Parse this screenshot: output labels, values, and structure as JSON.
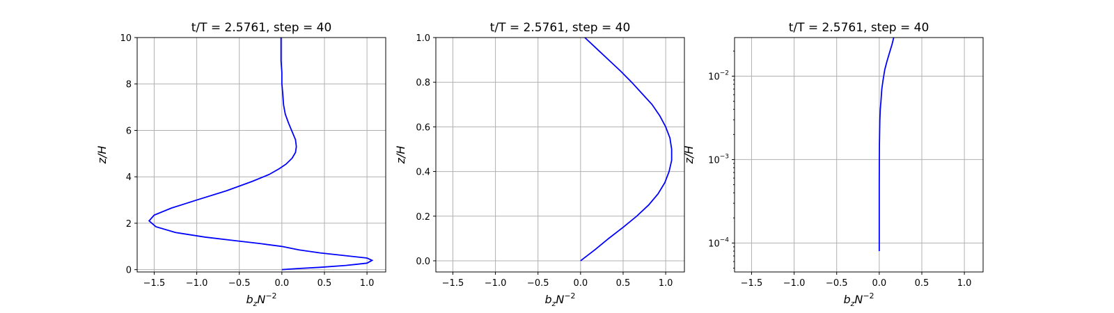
{
  "figure": {
    "curve_color": "#0000ff"
  },
  "chart_data": [
    {
      "type": "line",
      "title": "t/T = 2.5761, step = 40",
      "xlabel_main": "b",
      "xlabel_sub": "z",
      "xlabel_main2": "N",
      "xlabel_sup": "−2",
      "ylabel": "z/H",
      "xlim": [
        -1.7,
        1.22
      ],
      "ylim": [
        -0.1,
        10
      ],
      "yscale": "linear",
      "grid": true,
      "x_ticks": [
        -1.5,
        -1.0,
        -0.5,
        0.0,
        0.5,
        1.0
      ],
      "x_tick_labels": [
        "−1.5",
        "−1.0",
        "−0.5",
        "0.0",
        "0.5",
        "1.0"
      ],
      "y_ticks": [
        0,
        2,
        4,
        6,
        8,
        10
      ],
      "y_tick_labels": [
        "0",
        "2",
        "4",
        "6",
        "8",
        "10"
      ],
      "series": [
        {
          "x": [
            0.0,
            0.2,
            0.45,
            0.75,
            1.0,
            1.06,
            1.0,
            0.75,
            0.45,
            0.2,
            0.0,
            -0.25,
            -0.55,
            -0.9,
            -1.25,
            -1.48,
            -1.56,
            -1.5,
            -1.3,
            -1.0,
            -0.65,
            -0.35,
            -0.15,
            -0.03,
            0.05,
            0.12,
            0.16,
            0.17,
            0.16,
            0.12,
            0.08,
            0.04,
            0.02,
            0.01,
            0.0,
            0.0,
            -0.01,
            -0.01,
            -0.01
          ],
          "y": [
            0.0,
            0.05,
            0.1,
            0.18,
            0.28,
            0.4,
            0.5,
            0.6,
            0.72,
            0.85,
            1.0,
            1.12,
            1.25,
            1.4,
            1.6,
            1.85,
            2.1,
            2.35,
            2.65,
            3.0,
            3.4,
            3.8,
            4.1,
            4.35,
            4.55,
            4.8,
            5.05,
            5.3,
            5.6,
            5.95,
            6.3,
            6.7,
            7.1,
            7.6,
            8.0,
            8.5,
            9.0,
            9.5,
            10.0
          ]
        }
      ]
    },
    {
      "type": "line",
      "title": "t/T = 2.5761, step = 40",
      "xlabel_main": "b",
      "xlabel_sub": "z",
      "xlabel_main2": "N",
      "xlabel_sup": "−2",
      "ylabel": "z/H",
      "xlim": [
        -1.7,
        1.22
      ],
      "ylim": [
        -0.05,
        1.0
      ],
      "yscale": "linear",
      "grid": true,
      "x_ticks": [
        -1.5,
        -1.0,
        -0.5,
        0.0,
        0.5,
        1.0
      ],
      "x_tick_labels": [
        "−1.5",
        "−1.0",
        "−0.5",
        "0.0",
        "0.5",
        "1.0"
      ],
      "y_ticks": [
        0.0,
        0.2,
        0.4,
        0.6,
        0.8,
        1.0
      ],
      "y_tick_labels": [
        "0.0",
        "0.2",
        "0.4",
        "0.6",
        "0.8",
        "1.0"
      ],
      "series": [
        {
          "x": [
            0.0,
            0.17,
            0.33,
            0.5,
            0.66,
            0.8,
            0.91,
            0.99,
            1.04,
            1.07,
            1.07,
            1.05,
            1.0,
            0.93,
            0.84,
            0.72,
            0.6,
            0.47,
            0.33,
            0.19,
            0.05
          ],
          "y": [
            0.0,
            0.05,
            0.1,
            0.15,
            0.2,
            0.25,
            0.3,
            0.35,
            0.4,
            0.45,
            0.5,
            0.55,
            0.6,
            0.65,
            0.7,
            0.75,
            0.8,
            0.85,
            0.9,
            0.95,
            1.0
          ]
        }
      ]
    },
    {
      "type": "line",
      "title": "t/T = 2.5761, step = 40",
      "xlabel_main": "b",
      "xlabel_sub": "z",
      "xlabel_main2": "N",
      "xlabel_sup": "−2",
      "ylabel": "z/H",
      "xlim": [
        -1.7,
        1.22
      ],
      "ylim": [
        4.5e-05,
        0.029
      ],
      "yscale": "log",
      "grid": true,
      "x_ticks": [
        -1.5,
        -1.0,
        -0.5,
        0.0,
        0.5,
        1.0
      ],
      "x_tick_labels": [
        "−1.5",
        "−1.0",
        "−0.5",
        "0.0",
        "0.5",
        "1.0"
      ],
      "y_ticks": [
        0.0001,
        0.001,
        0.01
      ],
      "y_tick_labels": [
        "10",
        "10",
        "10"
      ],
      "y_tick_exponents": [
        "−4",
        "−3",
        "−2"
      ],
      "series": [
        {
          "x": [
            0.0,
            0.0,
            0.0,
            0.001,
            0.002,
            0.004,
            0.007,
            0.012,
            0.02,
            0.03,
            0.045,
            0.065,
            0.09,
            0.12,
            0.15,
            0.17
          ],
          "y": [
            8e-05,
            0.0002,
            0.0005,
            0.001,
            0.0015,
            0.002,
            0.003,
            0.004,
            0.005,
            0.007,
            0.009,
            0.012,
            0.015,
            0.019,
            0.024,
            0.029
          ]
        }
      ]
    }
  ]
}
